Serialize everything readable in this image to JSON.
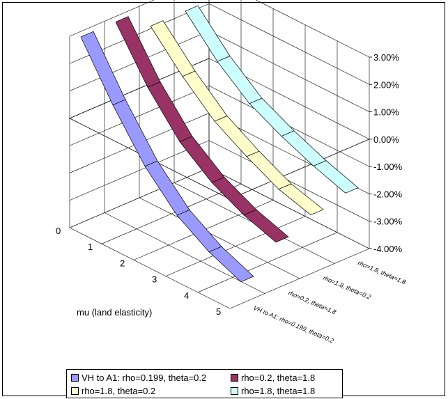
{
  "chart_data": {
    "type": "3d-line-ribbon",
    "xlabel": "mu (land elasticity)",
    "x_categories": [
      "0",
      "1",
      "2",
      "3",
      "4",
      "5"
    ],
    "zlim": [
      -0.04,
      0.03
    ],
    "z_ticks": [
      "-4.00%",
      "-3.00%",
      "-2.00%",
      "-1.00%",
      "0.00%",
      "1.00%",
      "2.00%",
      "3.00%"
    ],
    "grid": true,
    "legend_position": "bottom",
    "series": [
      {
        "name": "VH to A1: rho=0.199, theta=0.2",
        "color": "#9999ff",
        "values": [
          0.028,
          0.009,
          -0.0075,
          -0.0195,
          -0.027,
          -0.032
        ]
      },
      {
        "name": "rho=0.2, theta=1.8",
        "color": "#993366",
        "values": [
          0.028,
          0.01,
          -0.004,
          -0.013,
          -0.019,
          -0.023
        ]
      },
      {
        "name": "rho=1.8, theta=0.2",
        "color": "#ffffcc",
        "values": [
          0.021,
          0.0085,
          -0.002,
          -0.009,
          -0.015,
          -0.0185
        ]
      },
      {
        "name": "rho=1.8, theta=1.8",
        "color": "#ccffff",
        "values": [
          0.021,
          0.0085,
          -0.001,
          -0.007,
          -0.012,
          -0.016
        ]
      }
    ],
    "depth_labels": [
      "VH to A1: rho=0.199, theta=0.2",
      "rho=0.2, theta=1.8",
      "rho=1.8, theta=0.2",
      "rho=1.8, theta=1.8"
    ]
  }
}
